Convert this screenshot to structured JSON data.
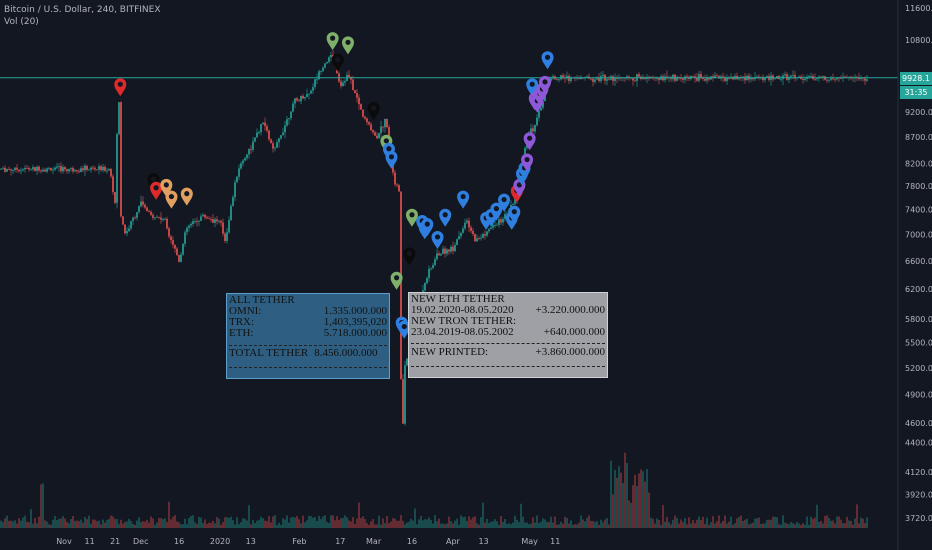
{
  "header": {
    "symbol_line": "Bitcoin / U.S. Dollar, 240, BITFINEX",
    "study_line": "Vol (20)"
  },
  "price_tags": {
    "last_price": "9928.1",
    "countdown": "31:35"
  },
  "colors": {
    "background": "#131722",
    "up_candle": "#26a69a",
    "down_candle": "#ef5350",
    "horizontal_line": "#26a69a",
    "box1_bg": "#2e5f82",
    "box2_bg": "#9ea0a6",
    "marker_red": "#e02a2a",
    "marker_black": "#0b0b0b",
    "marker_orange": "#e0a060",
    "marker_green": "#7fb069",
    "marker_blue": "#2f7fe0",
    "marker_purple": "#8e58d8"
  },
  "chart_data": {
    "type": "candlestick",
    "ylim": [
      3720,
      11600
    ],
    "scale": "log",
    "y_ticks": [
      "11600.0",
      "10800.0",
      "9928.1",
      "9200.0",
      "8700.0",
      "8200.0",
      "7800.0",
      "7400.0",
      "7000.0",
      "6600.0",
      "6200.0",
      "5800.0",
      "5500.0",
      "5200.0",
      "4900.0",
      "4600.0",
      "4400.0",
      "4120.0",
      "3920.0",
      "3720.0"
    ],
    "x_ticks": [
      "Nov",
      "11",
      "21",
      "Dec",
      "16",
      "2020",
      "13",
      "Feb",
      "17",
      "Mar",
      "16",
      "Apr",
      "13",
      "May",
      "11"
    ],
    "horizontal_line_price": 9928.1,
    "price_path_points": [
      [
        "Oct 25",
        8100
      ],
      [
        "Oct 27",
        7450
      ],
      [
        "Oct 28",
        9300
      ],
      [
        "Oct 29",
        9450
      ],
      [
        "Nov 1",
        9200
      ],
      [
        "Nov 5",
        9300
      ],
      [
        "Nov 11",
        8850
      ],
      [
        "Nov 16",
        8500
      ],
      [
        "Nov 21",
        7700
      ],
      [
        "Nov 25",
        7000
      ],
      [
        "Dec 1",
        7500
      ],
      [
        "Dec 5",
        7300
      ],
      [
        "Dec 10",
        7250
      ],
      [
        "Dec 16",
        6600
      ],
      [
        "Dec 19",
        7100
      ],
      [
        "Dec 25",
        7300
      ],
      [
        "Jan 1",
        7200
      ],
      [
        "Jan 3",
        6900
      ],
      [
        "Jan 8",
        8100
      ],
      [
        "Jan 13",
        8500
      ],
      [
        "Jan 18",
        9000
      ],
      [
        "Jan 22",
        8400
      ],
      [
        "Jan 30",
        9400
      ],
      [
        "Feb 5",
        9600
      ],
      [
        "Feb 10",
        10200
      ],
      [
        "Feb 14",
        10450
      ],
      [
        "Feb 17",
        9750
      ],
      [
        "Feb 20",
        10000
      ],
      [
        "Feb 26",
        9100
      ],
      [
        "Mar 2",
        8700
      ],
      [
        "Mar 6",
        9050
      ],
      [
        "Mar 9",
        7900
      ],
      [
        "Mar 11",
        7700
      ],
      [
        "Mar 12",
        4000
      ],
      [
        "Mar 13",
        5200
      ],
      [
        "Mar 15",
        5400
      ],
      [
        "Mar 18",
        5900
      ],
      [
        "Mar 21",
        6300
      ],
      [
        "Mar 26",
        6700
      ],
      [
        "Apr 1",
        6800
      ],
      [
        "Apr 6",
        7200
      ],
      [
        "Apr 10",
        6900
      ],
      [
        "Apr 16",
        7100
      ],
      [
        "Apr 22",
        7300
      ],
      [
        "Apr 27",
        7700
      ],
      [
        "Apr 30",
        8800
      ],
      [
        "May 3",
        8900
      ],
      [
        "May 6",
        9400
      ],
      [
        "May 8",
        9928.1
      ]
    ],
    "markers": [
      {
        "date": "Oct 29",
        "price": 9700,
        "color": "red"
      },
      {
        "date": "Dec 6",
        "price": 7850,
        "color": "black"
      },
      {
        "date": "Dec 7",
        "price": 7700,
        "color": "red"
      },
      {
        "date": "Dec 11",
        "price": 7750,
        "color": "orange"
      },
      {
        "date": "Dec 13",
        "price": 7550,
        "color": "orange"
      },
      {
        "date": "Dec 19",
        "price": 7600,
        "color": "orange"
      },
      {
        "date": "Feb 14",
        "price": 10750,
        "color": "green"
      },
      {
        "date": "Feb 16",
        "price": 10250,
        "color": "black"
      },
      {
        "date": "Feb 20",
        "price": 10650,
        "color": "green"
      },
      {
        "date": "Mar 1",
        "price": 9200,
        "color": "black"
      },
      {
        "date": "Mar 6",
        "price": 8550,
        "color": "green"
      },
      {
        "date": "Mar 7",
        "price": 8400,
        "color": "blue"
      },
      {
        "date": "Mar 8",
        "price": 8250,
        "color": "blue"
      },
      {
        "date": "Mar 10",
        "price": 6300,
        "color": "green"
      },
      {
        "date": "Mar 12",
        "price": 5700,
        "color": "blue"
      },
      {
        "date": "Mar 13",
        "price": 5650,
        "color": "blue"
      },
      {
        "date": "Mar 15",
        "price": 6650,
        "color": "black"
      },
      {
        "date": "Mar 16",
        "price": 7250,
        "color": "green"
      },
      {
        "date": "Mar 20",
        "price": 7150,
        "color": "blue"
      },
      {
        "date": "Mar 21",
        "price": 7050,
        "color": "blue"
      },
      {
        "date": "Mar 22",
        "price": 7100,
        "color": "blue"
      },
      {
        "date": "Mar 26",
        "price": 6900,
        "color": "blue"
      },
      {
        "date": "Mar 29",
        "price": 7250,
        "color": "blue"
      },
      {
        "date": "Apr 5",
        "price": 7550,
        "color": "blue"
      },
      {
        "date": "Apr 14",
        "price": 7200,
        "color": "blue"
      },
      {
        "date": "Apr 16",
        "price": 7250,
        "color": "blue"
      },
      {
        "date": "Apr 18",
        "price": 7350,
        "color": "blue"
      },
      {
        "date": "Apr 21",
        "price": 7500,
        "color": "blue"
      },
      {
        "date": "Apr 24",
        "price": 7200,
        "color": "blue"
      },
      {
        "date": "Apr 25",
        "price": 7300,
        "color": "blue"
      },
      {
        "date": "Apr 26",
        "price": 7650,
        "color": "red"
      },
      {
        "date": "Apr 27",
        "price": 7750,
        "color": "purple"
      },
      {
        "date": "Apr 28",
        "price": 7950,
        "color": "blue"
      },
      {
        "date": "Apr 29",
        "price": 8050,
        "color": "blue"
      },
      {
        "date": "Apr 30",
        "price": 8200,
        "color": "purple"
      },
      {
        "date": "May 1",
        "price": 8600,
        "color": "purple"
      },
      {
        "date": "May 2",
        "price": 9700,
        "color": "blue"
      },
      {
        "date": "May 3",
        "price": 9400,
        "color": "purple"
      },
      {
        "date": "May 4",
        "price": 9350,
        "color": "purple"
      },
      {
        "date": "May 5",
        "price": 9500,
        "color": "purple"
      },
      {
        "date": "May 6",
        "price": 9600,
        "color": "purple"
      },
      {
        "date": "May 7",
        "price": 9750,
        "color": "purple"
      },
      {
        "date": "May 8",
        "price": 10300,
        "color": "blue"
      }
    ]
  },
  "box_all_tether": {
    "title": "ALL TETHER",
    "rows": [
      {
        "label": "OMNI:",
        "value": "1.335.000.000"
      },
      {
        "label": "TRX:",
        "value": "1,403,395,020"
      },
      {
        "label": "ETH:",
        "value": "5.718.000.000"
      }
    ],
    "total_label": "TOTAL TETHER",
    "total_value": "8.456.000.000"
  },
  "box_new_tether": {
    "title": "NEW ETH TETHER",
    "eth_range": "19.02.2020-08.05.2020",
    "eth_value": "+3.220.000.000",
    "tron_title": "NEW TRON TETHER:",
    "tron_range": "23.04.2019-08.05.2002",
    "tron_value": "+640.000.000",
    "printed_label": "NEW PRINTED:",
    "printed_value": "+3.860.000.000"
  }
}
